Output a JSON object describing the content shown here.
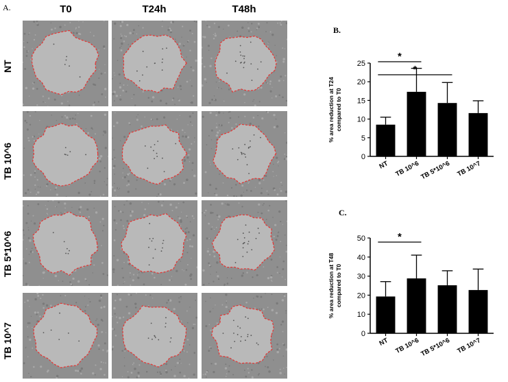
{
  "panel_a": {
    "letter": "A.",
    "columns": [
      "T0",
      "T24h",
      "T48h"
    ],
    "rows": [
      "NT",
      "TB 10^6",
      "TB 5*10^6",
      "TB 10^7"
    ]
  },
  "colors": {
    "bar": "#000000",
    "wound_outline": "#e8312f",
    "cells": "#8f8f8f",
    "wound": "#b9b9b9"
  },
  "chart_data": [
    {
      "panel_letter": "B.",
      "type": "bar",
      "categories": [
        "NT",
        "TB 10^6",
        "TB 5*10^6",
        "TB 10^7"
      ],
      "values": [
        8.5,
        17.3,
        14.3,
        11.6
      ],
      "errors": [
        2.0,
        6.3,
        5.5,
        3.3
      ],
      "ylabel_lines": [
        "% area reduction at T24",
        "compared to T0"
      ],
      "ylim": [
        0,
        25
      ],
      "yticks": [
        0,
        5,
        10,
        15,
        20,
        25
      ],
      "significance": [
        {
          "from": 0,
          "to": 1,
          "label": "*"
        },
        {
          "from": 0,
          "to": 2,
          "label": "*"
        }
      ]
    },
    {
      "panel_letter": "C.",
      "type": "bar",
      "categories": [
        "NT",
        "TB 10^6",
        "TB 5*10^6",
        "TB 10^7"
      ],
      "values": [
        19.3,
        28.8,
        25.2,
        22.7
      ],
      "errors": [
        7.8,
        12.2,
        7.6,
        11.0
      ],
      "ylabel_lines": [
        "% area reduction at T48",
        "compared to T0"
      ],
      "ylim": [
        0,
        50
      ],
      "yticks": [
        0,
        10,
        20,
        30,
        40,
        50
      ],
      "significance": [
        {
          "from": 0,
          "to": 1,
          "label": "*"
        }
      ]
    }
  ]
}
